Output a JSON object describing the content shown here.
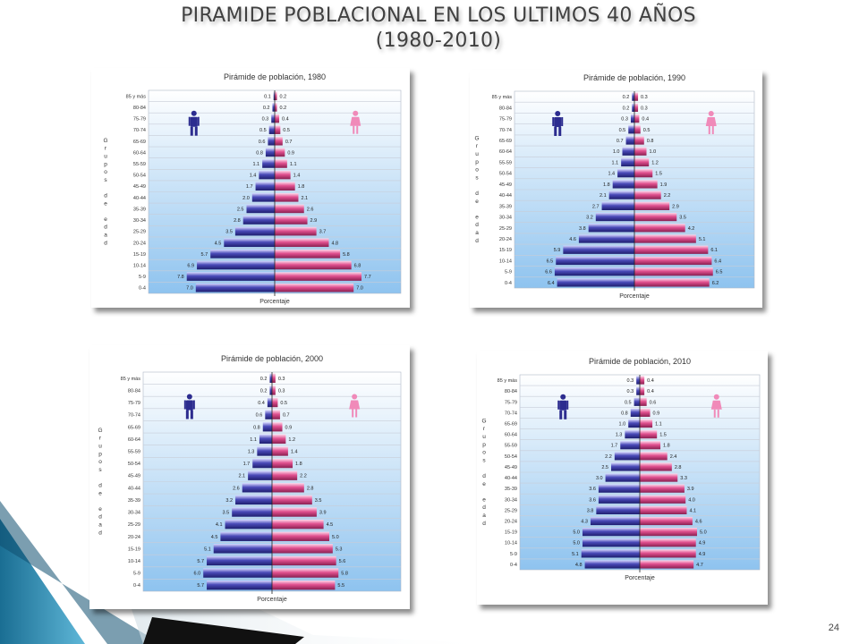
{
  "slide": {
    "title_line1": "PIRAMIDE POBLACIONAL EN LOS ULTIMOS 40 AÑOS",
    "title_line2": "(1980-2010)",
    "page_number": "24"
  },
  "colors": {
    "male": "#4a4ab8",
    "female": "#e0508f",
    "plot_bg_top": "#ffffff",
    "plot_bg_bottom": "#8ec3ef"
  },
  "icons": {
    "male": "male-person-icon",
    "female": "female-person-icon"
  },
  "chart_data": [
    {
      "type": "bar",
      "title": "Pirámide de población, 1980",
      "xlabel": "Porcentaje",
      "ylabel": "Grupos de edad",
      "categories": [
        "85 y más",
        "80-84",
        "75-79",
        "70-74",
        "65-69",
        "60-64",
        "55-59",
        "50-54",
        "45-49",
        "40-44",
        "35-39",
        "30-34",
        "25-29",
        "20-24",
        "15-19",
        "10-14",
        "5-9",
        "0-4"
      ],
      "series": [
        {
          "side": "male",
          "values": [
            0.1,
            0.2,
            0.3,
            0.5,
            0.6,
            0.8,
            1.1,
            1.4,
            1.7,
            2.0,
            2.5,
            2.8,
            3.5,
            4.5,
            5.7,
            6.9,
            7.8,
            7.0
          ]
        },
        {
          "side": "female",
          "values": [
            0.2,
            0.2,
            0.4,
            0.5,
            0.7,
            0.9,
            1.1,
            1.4,
            1.8,
            2.1,
            2.6,
            2.9,
            3.7,
            4.8,
            5.8,
            6.8,
            7.7,
            7.0
          ]
        }
      ]
    },
    {
      "type": "bar",
      "title": "Pirámide de población, 1990",
      "xlabel": "Porcentaje",
      "ylabel": "Grupos de edad",
      "categories": [
        "85 y más",
        "80-84",
        "75-79",
        "70-74",
        "65-69",
        "60-64",
        "55-59",
        "50-54",
        "45-49",
        "40-44",
        "35-39",
        "30-34",
        "25-29",
        "20-24",
        "15-19",
        "10-14",
        "5-9",
        "0-4"
      ],
      "series": [
        {
          "side": "male",
          "values": [
            0.2,
            0.2,
            0.3,
            0.5,
            0.7,
            1.0,
            1.1,
            1.4,
            1.8,
            2.1,
            2.7,
            3.2,
            3.8,
            4.6,
            5.9,
            6.5,
            6.6,
            6.4
          ]
        },
        {
          "side": "female",
          "values": [
            0.3,
            0.3,
            0.4,
            0.5,
            0.8,
            1.0,
            1.2,
            1.5,
            1.9,
            2.2,
            2.9,
            3.5,
            4.2,
            5.1,
            6.1,
            6.4,
            6.5,
            6.2
          ]
        }
      ]
    },
    {
      "type": "bar",
      "title": "Pirámide de población, 2000",
      "xlabel": "Porcentaje",
      "ylabel": "Grupos de edad",
      "categories": [
        "85 y más",
        "80-84",
        "75-79",
        "70-74",
        "65-69",
        "60-64",
        "55-59",
        "50-54",
        "45-49",
        "40-44",
        "35-39",
        "30-34",
        "25-29",
        "20-24",
        "15-19",
        "10-14",
        "5-9",
        "0-4"
      ],
      "series": [
        {
          "side": "male",
          "values": [
            0.2,
            0.2,
            0.4,
            0.6,
            0.8,
            1.1,
            1.3,
            1.7,
            2.1,
            2.6,
            3.2,
            3.5,
            4.1,
            4.5,
            5.1,
            5.7,
            6.0,
            5.7
          ]
        },
        {
          "side": "female",
          "values": [
            0.3,
            0.3,
            0.5,
            0.7,
            0.9,
            1.2,
            1.4,
            1.8,
            2.2,
            2.8,
            3.5,
            3.9,
            4.5,
            5.0,
            5.3,
            5.6,
            5.8,
            5.5
          ]
        }
      ]
    },
    {
      "type": "bar",
      "title": "Pirámide de población, 2010",
      "xlabel": "Porcentaje",
      "ylabel": "Grupos de edad",
      "categories": [
        "85 y más",
        "80-84",
        "75-79",
        "70-74",
        "65-69",
        "60-64",
        "55-59",
        "50-54",
        "45-49",
        "40-44",
        "35-39",
        "30-34",
        "25-29",
        "20-24",
        "15-19",
        "10-14",
        "5-9",
        "0-4"
      ],
      "series": [
        {
          "side": "male",
          "values": [
            0.3,
            0.3,
            0.5,
            0.8,
            1.0,
            1.3,
            1.7,
            2.2,
            2.5,
            3.0,
            3.6,
            3.6,
            3.8,
            4.3,
            5.0,
            5.0,
            5.1,
            4.8
          ]
        },
        {
          "side": "female",
          "values": [
            0.4,
            0.4,
            0.6,
            0.9,
            1.1,
            1.5,
            1.8,
            2.4,
            2.8,
            3.3,
            3.9,
            4.0,
            4.1,
            4.6,
            5.0,
            4.9,
            4.9,
            4.7
          ]
        }
      ]
    }
  ]
}
